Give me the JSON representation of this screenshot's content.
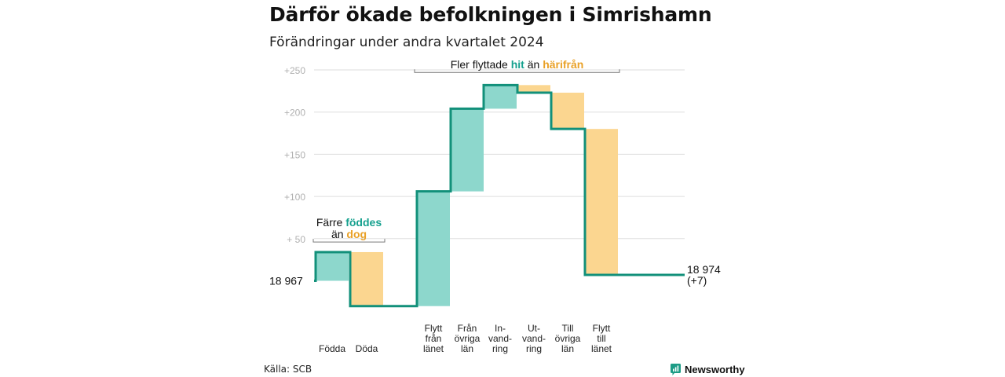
{
  "header": {
    "title": "Därför ökade befolkningen i Simrishamn",
    "subtitle": "Förändringar under andra kvartalet 2024"
  },
  "footer": {
    "source": "Källa: SCB",
    "brand": "Newsworthy"
  },
  "colors": {
    "positive_fill": "#8dd7cc",
    "negative_fill": "#fbd690",
    "line": "#12907a",
    "positive_text": "#15a08e",
    "negative_text": "#e9a128",
    "grid": "#dddddd",
    "tick": "#b0b0b0",
    "bracket": "#777777"
  },
  "chart_data": {
    "type": "waterfall",
    "title": "Därför ökade befolkningen i Simrishamn",
    "subtitle": "Förändringar under andra kvartalet 2024",
    "start_label": "18  967",
    "start_value": 18967,
    "end_label_lines": [
      "18 974",
      "(+7)"
    ],
    "end_value": 18974,
    "net_change": 7,
    "ylim": [
      -30,
      255
    ],
    "y_ticks": [
      {
        "value": 50,
        "label": "+  50"
      },
      {
        "value": 100,
        "label": "+100"
      },
      {
        "value": 150,
        "label": "+150"
      },
      {
        "value": 200,
        "label": "+200"
      },
      {
        "value": 250,
        "label": "+250"
      }
    ],
    "steps": [
      {
        "category": "Födda",
        "label_lines": [
          "Födda"
        ],
        "value": 34
      },
      {
        "category": "Döda",
        "label_lines": [
          "Döda"
        ],
        "value": -64
      },
      {
        "category": "Flytt från länet",
        "label_lines": [
          "Flytt",
          "från",
          "länet"
        ],
        "value": 136
      },
      {
        "category": "Från övriga län",
        "label_lines": [
          "Från",
          "övriga",
          "län"
        ],
        "value": 98
      },
      {
        "category": "Invandring",
        "label_lines": [
          "In-",
          "vand-",
          "ring"
        ],
        "value": 28
      },
      {
        "category": "Utvandring",
        "label_lines": [
          "Ut-",
          "vand-",
          "ring"
        ],
        "value": -9
      },
      {
        "category": "Till övriga län",
        "label_lines": [
          "Till",
          "övriga",
          "län"
        ],
        "value": -43
      },
      {
        "category": "Flytt till länet",
        "label_lines": [
          "Flytt",
          "till",
          "länet"
        ],
        "value": -173
      }
    ],
    "annotations": [
      {
        "name": "births-deaths",
        "span": [
          0,
          1
        ],
        "level": 46,
        "lines": [
          [
            {
              "text": "Färre ",
              "style": "plain"
            },
            {
              "text": "föddes",
              "style": "positive"
            }
          ],
          [
            {
              "text": "än ",
              "style": "plain"
            },
            {
              "text": "dog",
              "style": "negative"
            }
          ]
        ]
      },
      {
        "name": "migration",
        "span": [
          2,
          7
        ],
        "level": 247,
        "lines": [
          [
            {
              "text": "Fler flyttade ",
              "style": "plain"
            },
            {
              "text": "hit",
              "style": "positive"
            },
            {
              "text": "  än ",
              "style": "plain"
            },
            {
              "text": "härifrån",
              "style": "negative"
            }
          ]
        ]
      }
    ],
    "grid": true,
    "legend": "none"
  }
}
